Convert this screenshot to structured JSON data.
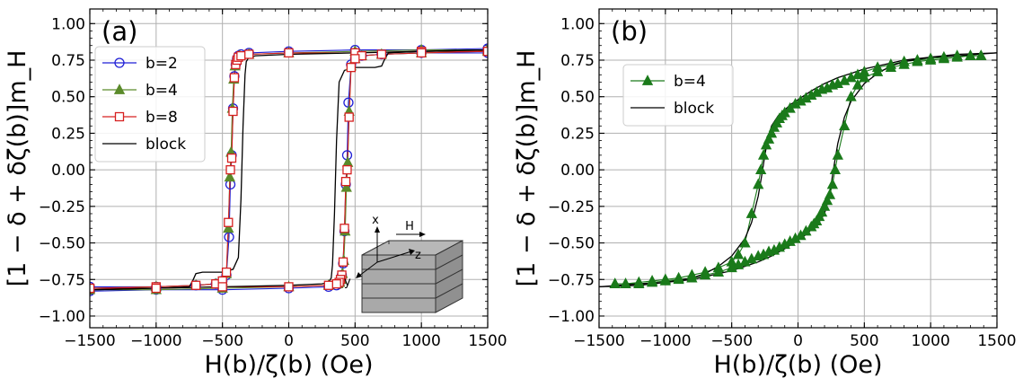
{
  "chart_data": [
    {
      "type": "line",
      "panel_label": "(a)",
      "xlabel": "H(b)/ζ(b) (Oe)",
      "ylabel": "[1 − δ + δζ(b)]m_H",
      "xlim": [
        -1500,
        1500
      ],
      "ylim": [
        -1.08,
        1.1
      ],
      "xticks": [
        -1500,
        -1000,
        -500,
        0,
        500,
        1000,
        1500
      ],
      "xtick_labels": [
        "−1500",
        "−1000",
        "−500",
        "0",
        "500",
        "1000",
        "1500"
      ],
      "yticks": [
        -1.0,
        -0.75,
        -0.5,
        -0.25,
        0.0,
        0.25,
        0.5,
        0.75,
        1.0
      ],
      "ytick_labels": [
        "−1.00",
        "−0.75",
        "−0.50",
        "−0.25",
        "0.00",
        "0.25",
        "0.50",
        "0.75",
        "1.00"
      ],
      "grid": true,
      "legend_position": "upper-left",
      "series": [
        {
          "name": "b=2",
          "color": "#1f1fd6",
          "marker": "circle",
          "upper": {
            "x": [
              -1500,
              -1000,
              -700,
              -550,
              -500,
              -470,
              -450,
              -440,
              -430,
              -420,
              -410,
              -400,
              -390,
              -380,
              -360,
              -300,
              0,
              500,
              1000,
              1500
            ],
            "y": [
              -0.8,
              -0.8,
              -0.79,
              -0.78,
              -0.76,
              -0.72,
              -0.46,
              -0.1,
              0.1,
              0.42,
              0.64,
              0.72,
              0.76,
              0.78,
              0.79,
              0.8,
              0.81,
              0.82,
              0.82,
              0.83
            ]
          },
          "lower": {
            "x": [
              1500,
              1000,
              700,
              550,
              500,
              470,
              450,
              440,
              430,
              420,
              410,
              400,
              390,
              380,
              360,
              300,
              0,
              -500,
              -1000,
              -1500
            ],
            "y": [
              0.8,
              0.8,
              0.79,
              0.78,
              0.76,
              0.72,
              0.46,
              0.1,
              -0.1,
              -0.42,
              -0.64,
              -0.72,
              -0.76,
              -0.78,
              -0.79,
              -0.8,
              -0.81,
              -0.82,
              -0.82,
              -0.83
            ]
          }
        },
        {
          "name": "b=4",
          "color": "#5a8a2a",
          "marker": "triangle",
          "upper": {
            "x": [
              -1500,
              -1000,
              -700,
              -550,
              -500,
              -470,
              -455,
              -445,
              -435,
              -425,
              -415,
              -405,
              -395,
              -385,
              -370,
              -300,
              0,
              500,
              1000,
              1500
            ],
            "y": [
              -0.81,
              -0.8,
              -0.79,
              -0.78,
              -0.76,
              -0.71,
              -0.4,
              -0.05,
              0.12,
              0.42,
              0.62,
              0.71,
              0.75,
              0.77,
              0.78,
              0.79,
              0.8,
              0.81,
              0.82,
              0.82
            ]
          },
          "lower": {
            "x": [
              1500,
              1000,
              700,
              550,
              500,
              470,
              455,
              445,
              435,
              425,
              415,
              405,
              395,
              385,
              370,
              300,
              0,
              -500,
              -1000,
              -1500
            ],
            "y": [
              0.81,
              0.8,
              0.79,
              0.78,
              0.76,
              0.71,
              0.4,
              0.05,
              -0.12,
              -0.42,
              -0.62,
              -0.71,
              -0.75,
              -0.77,
              -0.78,
              -0.79,
              -0.8,
              -0.81,
              -0.82,
              -0.82
            ]
          }
        },
        {
          "name": "b=8",
          "color": "#d62020",
          "marker": "square",
          "upper": {
            "x": [
              -1500,
              -1000,
              -700,
              -550,
              -500,
              -470,
              -455,
              -440,
              -430,
              -420,
              -410,
              -400,
              -390,
              -380,
              -360,
              -300,
              0,
              500,
              1000,
              1500
            ],
            "y": [
              -0.81,
              -0.8,
              -0.79,
              -0.78,
              -0.76,
              -0.7,
              -0.36,
              0.0,
              0.08,
              0.4,
              0.63,
              0.72,
              0.75,
              0.77,
              0.78,
              0.79,
              0.8,
              0.8,
              0.81,
              0.81
            ]
          },
          "lower": {
            "x": [
              1500,
              1000,
              700,
              550,
              500,
              470,
              455,
              440,
              430,
              420,
              410,
              400,
              390,
              380,
              360,
              300,
              0,
              -500,
              -1000,
              -1500
            ],
            "y": [
              0.81,
              0.8,
              0.79,
              0.78,
              0.76,
              0.7,
              0.36,
              0.0,
              -0.08,
              -0.4,
              -0.63,
              -0.72,
              -0.75,
              -0.77,
              -0.78,
              -0.79,
              -0.8,
              -0.8,
              -0.81,
              -0.81
            ]
          }
        },
        {
          "name": "block",
          "color": "#000000",
          "marker": "none",
          "upper": {
            "x": [
              -1500,
              -1000,
              -750,
              -720,
              -700,
              -650,
              -500,
              -420,
              -380,
              -360,
              -345,
              -330,
              -320,
              -300,
              -250,
              0,
              500,
              1000,
              1500
            ],
            "y": [
              -0.82,
              -0.81,
              -0.8,
              -0.75,
              -0.71,
              -0.7,
              -0.7,
              -0.68,
              -0.6,
              -0.2,
              0.3,
              0.65,
              0.74,
              0.77,
              0.78,
              0.79,
              0.8,
              0.81,
              0.82
            ]
          },
          "lower": {
            "x": [
              1500,
              1000,
              750,
              720,
              700,
              650,
              500,
              420,
              380,
              360,
              345,
              330,
              320,
              300,
              250,
              0,
              -500,
              -1000,
              -1500
            ],
            "y": [
              0.82,
              0.81,
              0.8,
              0.75,
              0.71,
              0.7,
              0.7,
              0.68,
              0.6,
              0.2,
              -0.3,
              -0.65,
              -0.74,
              -0.77,
              -0.78,
              -0.79,
              -0.8,
              -0.81,
              -0.82
            ]
          }
        }
      ],
      "inset_axis_labels": {
        "x": "x",
        "y": "y",
        "z": "z",
        "field": "H"
      }
    },
    {
      "type": "line",
      "panel_label": "(b)",
      "xlabel": "H(b)/ζ(b) (Oe)",
      "ylabel": "[1 − δ + δζ(b)]m_H",
      "xlim": [
        -1500,
        1500
      ],
      "ylim": [
        -1.08,
        1.1
      ],
      "xticks": [
        -1500,
        -1000,
        -500,
        0,
        500,
        1000,
        1500
      ],
      "xtick_labels": [
        "−1500",
        "−1000",
        "−500",
        "0",
        "500",
        "1000",
        "1500"
      ],
      "yticks": [
        -1.0,
        -0.75,
        -0.5,
        -0.25,
        0.0,
        0.25,
        0.5,
        0.75,
        1.0
      ],
      "ytick_labels": [
        "−1.00",
        "−0.75",
        "−0.50",
        "−0.25",
        "0.00",
        "0.25",
        "0.50",
        "0.75",
        "1.00"
      ],
      "grid": true,
      "legend_position": "upper-left",
      "series": [
        {
          "name": "b=4",
          "color": "#1a7a1a",
          "marker": "triangle",
          "upper": {
            "x": [
              -1380,
              -1300,
              -1200,
              -1100,
              -1000,
              -900,
              -800,
              -700,
              -600,
              -500,
              -450,
              -400,
              -350,
              -300,
              -280,
              -260,
              -240,
              -220,
              -200,
              -180,
              -160,
              -140,
              -120,
              -100,
              -60,
              -20,
              20,
              60,
              100,
              140,
              180,
              220,
              260,
              300,
              350,
              400,
              450,
              500,
              600,
              700,
              800,
              900,
              1000,
              1100,
              1200,
              1300,
              1380
            ],
            "y": [
              -0.78,
              -0.78,
              -0.77,
              -0.76,
              -0.75,
              -0.74,
              -0.72,
              -0.7,
              -0.67,
              -0.63,
              -0.58,
              -0.5,
              -0.3,
              -0.1,
              0.0,
              0.1,
              0.17,
              0.21,
              0.25,
              0.29,
              0.32,
              0.35,
              0.37,
              0.39,
              0.42,
              0.45,
              0.47,
              0.49,
              0.51,
              0.53,
              0.55,
              0.56,
              0.58,
              0.59,
              0.61,
              0.63,
              0.65,
              0.67,
              0.7,
              0.72,
              0.74,
              0.75,
              0.76,
              0.77,
              0.78,
              0.78,
              0.78
            ]
          },
          "lower": {
            "x": [
              1380,
              1300,
              1200,
              1100,
              1000,
              900,
              800,
              700,
              600,
              500,
              450,
              400,
              350,
              300,
              280,
              260,
              240,
              220,
              200,
              180,
              160,
              140,
              120,
              100,
              60,
              20,
              -20,
              -60,
              -100,
              -140,
              -180,
              -220,
              -260,
              -300,
              -350,
              -400,
              -450,
              -500,
              -600,
              -700,
              -800,
              -900,
              -1000,
              -1100,
              -1200,
              -1300,
              -1380
            ],
            "y": [
              0.78,
              0.78,
              0.77,
              0.76,
              0.75,
              0.74,
              0.72,
              0.7,
              0.67,
              0.63,
              0.58,
              0.5,
              0.3,
              0.1,
              0.0,
              -0.1,
              -0.17,
              -0.21,
              -0.25,
              -0.29,
              -0.32,
              -0.35,
              -0.37,
              -0.39,
              -0.42,
              -0.45,
              -0.47,
              -0.49,
              -0.51,
              -0.53,
              -0.55,
              -0.56,
              -0.58,
              -0.59,
              -0.61,
              -0.63,
              -0.65,
              -0.67,
              -0.7,
              -0.72,
              -0.74,
              -0.75,
              -0.76,
              -0.77,
              -0.78,
              -0.78,
              -0.78
            ]
          }
        },
        {
          "name": "block",
          "color": "#000000",
          "marker": "none",
          "upper": {
            "x": [
              -1500,
              -1200,
              -1000,
              -800,
              -700,
              -600,
              -500,
              -400,
              -350,
              -300,
              -270,
              -250,
              -230,
              -200,
              -150,
              -100,
              -50,
              0,
              100,
              200,
              300,
              400,
              500,
              600,
              800,
              1000,
              1200,
              1500
            ],
            "y": [
              -0.8,
              -0.79,
              -0.77,
              -0.74,
              -0.71,
              -0.66,
              -0.59,
              -0.47,
              -0.36,
              -0.18,
              -0.02,
              0.1,
              0.2,
              0.3,
              0.37,
              0.41,
              0.45,
              0.48,
              0.54,
              0.59,
              0.63,
              0.66,
              0.69,
              0.71,
              0.75,
              0.77,
              0.78,
              0.8
            ]
          },
          "lower": {
            "x": [
              1500,
              1200,
              1000,
              800,
              700,
              600,
              500,
              400,
              350,
              300,
              270,
              250,
              230,
              200,
              150,
              100,
              50,
              0,
              -100,
              -200,
              -300,
              -400,
              -500,
              -600,
              -800,
              -1000,
              -1200,
              -1500
            ],
            "y": [
              0.8,
              0.79,
              0.77,
              0.74,
              0.71,
              0.66,
              0.59,
              0.47,
              0.36,
              0.18,
              0.02,
              -0.1,
              -0.2,
              -0.3,
              -0.37,
              -0.41,
              -0.45,
              -0.48,
              -0.54,
              -0.59,
              -0.63,
              -0.66,
              -0.69,
              -0.71,
              -0.75,
              -0.77,
              -0.78,
              -0.8
            ]
          }
        }
      ]
    }
  ]
}
